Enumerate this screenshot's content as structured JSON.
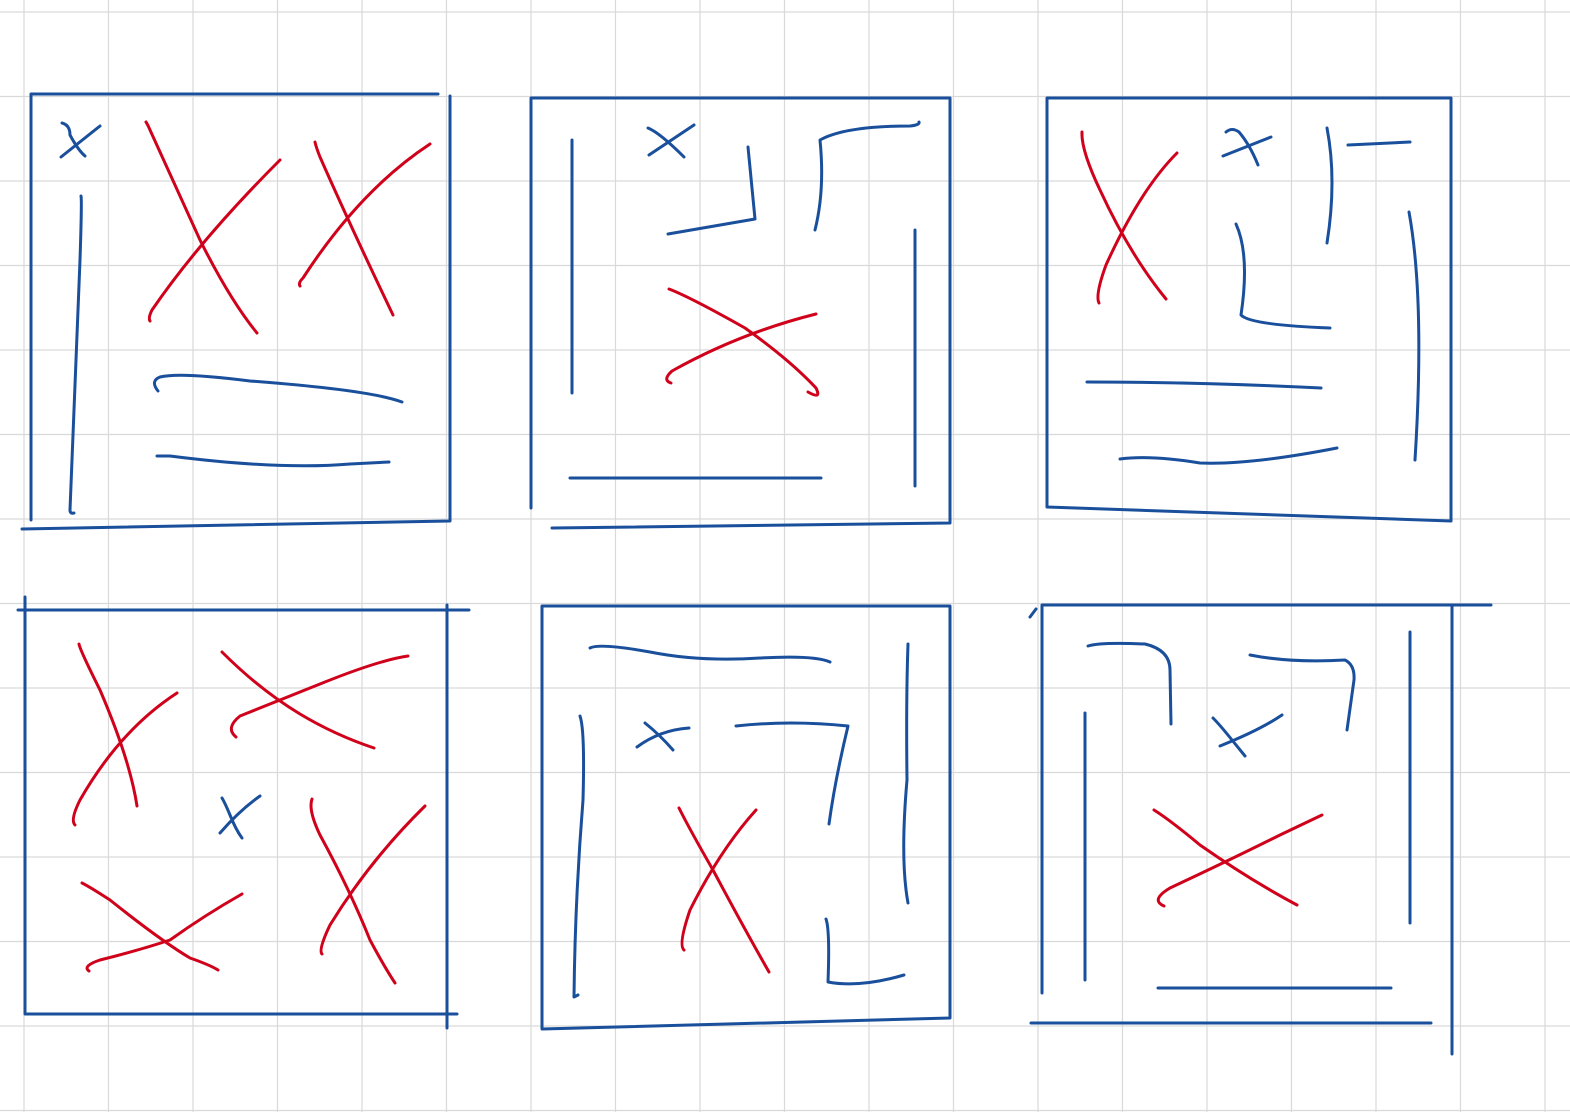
{
  "colors": {
    "background": "#ffffff",
    "grid": "#d9d9d9",
    "blue_ink": "#1a4f9c",
    "red_ink": "#d0021b"
  },
  "sheet": {
    "type": "graph-paper",
    "panels": [
      {
        "name": "panel-1",
        "row": 1,
        "column": 1,
        "blue_x_marks": 1,
        "red_x_marks": 2
      },
      {
        "name": "panel-2",
        "row": 1,
        "column": 2,
        "blue_x_marks": 1,
        "red_x_marks": 1
      },
      {
        "name": "panel-3",
        "row": 1,
        "column": 3,
        "blue_x_marks": 1,
        "red_x_marks": 1
      },
      {
        "name": "panel-4",
        "row": 2,
        "column": 1,
        "blue_x_marks": 1,
        "red_x_marks": 4
      },
      {
        "name": "panel-5",
        "row": 2,
        "column": 2,
        "blue_x_marks": 1,
        "red_x_marks": 1
      },
      {
        "name": "panel-6",
        "row": 2,
        "column": 3,
        "blue_x_marks": 1,
        "red_x_marks": 1
      }
    ]
  }
}
